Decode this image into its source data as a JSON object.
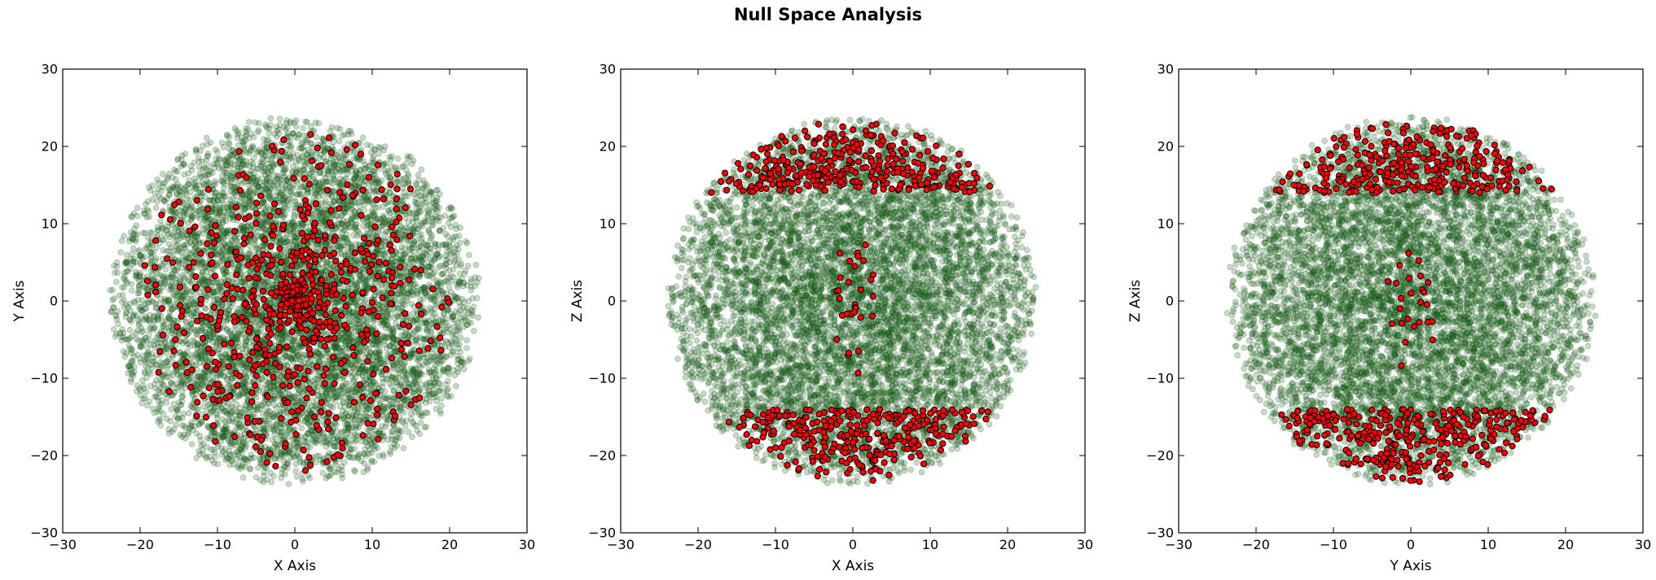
{
  "figure": {
    "title": "Null Space Analysis"
  },
  "colors": {
    "background_points": "#1f6b1f",
    "highlight_points": "#ff0000",
    "highlight_edge": "#000000"
  },
  "chart_data": [
    {
      "type": "scatter",
      "projection": "xy",
      "title": "",
      "xlabel": "X Axis",
      "ylabel": "Y Axis",
      "xlim": [
        -30,
        30
      ],
      "ylim": [
        -30,
        30
      ],
      "xticks": [
        -30,
        -20,
        -10,
        0,
        10,
        20,
        30
      ],
      "yticks": [
        -30,
        -20,
        -10,
        0,
        10,
        20,
        30
      ],
      "grid": false,
      "series": [
        {
          "role": "background",
          "color": "#1f6b1f",
          "alpha": 0.25,
          "approx_count": 8000,
          "radius": 24
        },
        {
          "role": "highlight",
          "color": "#ff0000",
          "approx_count": 700,
          "extent": 20
        }
      ]
    },
    {
      "type": "scatter",
      "projection": "xz",
      "title": "",
      "xlabel": "X Axis",
      "ylabel": "Z Axis",
      "xlim": [
        -30,
        30
      ],
      "ylim": [
        -30,
        30
      ],
      "xticks": [
        -30,
        -20,
        -10,
        0,
        10,
        20,
        30
      ],
      "yticks": [
        -30,
        -20,
        -10,
        0,
        10,
        20,
        30
      ],
      "grid": false,
      "series": [
        {
          "role": "background",
          "color": "#1f6b1f",
          "alpha": 0.25,
          "approx_count": 8000,
          "radius": 24
        },
        {
          "role": "highlight",
          "color": "#ff0000",
          "approx_count": 700,
          "caps_from_abs_z": 14,
          "center_band_x": [
            -3,
            3
          ]
        }
      ]
    },
    {
      "type": "scatter",
      "projection": "yz",
      "title": "",
      "xlabel": "Y Axis",
      "ylabel": "Z Axis",
      "xlim": [
        -30,
        30
      ],
      "ylim": [
        -30,
        30
      ],
      "xticks": [
        -30,
        -20,
        -10,
        0,
        10,
        20,
        30
      ],
      "yticks": [
        -30,
        -20,
        -10,
        0,
        10,
        20,
        30
      ],
      "grid": false,
      "series": [
        {
          "role": "background",
          "color": "#1f6b1f",
          "alpha": 0.25,
          "approx_count": 8000,
          "radius": 24
        },
        {
          "role": "highlight",
          "color": "#ff0000",
          "approx_count": 700,
          "caps_from_abs_z": 14,
          "center_band_x": [
            -3,
            3
          ]
        }
      ]
    }
  ]
}
